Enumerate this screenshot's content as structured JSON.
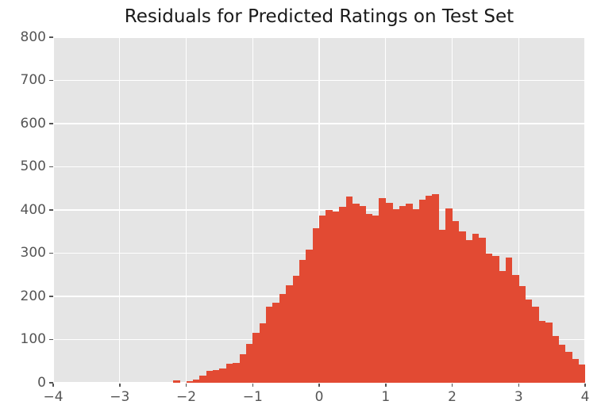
{
  "chart_data": {
    "type": "bar",
    "subtype": "histogram",
    "title": "Residuals for Predicted Ratings on Test Set",
    "xlabel": "",
    "ylabel": "",
    "xlim": [
      -4,
      4
    ],
    "ylim": [
      0,
      800
    ],
    "x_ticks": [
      -4,
      -3,
      -2,
      -1,
      0,
      1,
      2,
      3,
      4
    ],
    "x_tick_labels": [
      "−4",
      "−3",
      "−2",
      "−1",
      "0",
      "1",
      "2",
      "3",
      "4"
    ],
    "y_ticks": [
      0,
      100,
      200,
      300,
      400,
      500,
      600,
      700,
      800
    ],
    "y_tick_labels": [
      "0",
      "100",
      "200",
      "300",
      "400",
      "500",
      "600",
      "700",
      "800"
    ],
    "grid": true,
    "legend": null,
    "bin_start": -2.2,
    "bin_width": 0.1,
    "values": [
      6,
      0,
      3,
      7,
      17,
      27,
      30,
      33,
      44,
      46,
      66,
      90,
      116,
      137,
      177,
      185,
      205,
      226,
      247,
      284,
      308,
      357,
      387,
      400,
      396,
      408,
      432,
      415,
      410,
      391,
      388,
      428,
      417,
      402,
      409,
      415,
      401,
      424,
      433,
      437,
      355,
      403,
      375,
      351,
      330,
      345,
      336,
      300,
      293,
      259,
      290,
      250,
      223,
      192,
      177,
      143,
      140,
      108,
      88,
      72,
      55,
      42
    ],
    "colors": {
      "bar": "#E24A33",
      "plot_background": "#E5E5E5",
      "figure_background": "#FFFFFF",
      "grid": "#FFFFFF",
      "tick": "#555555",
      "title_text": "#1A1A1A"
    }
  }
}
